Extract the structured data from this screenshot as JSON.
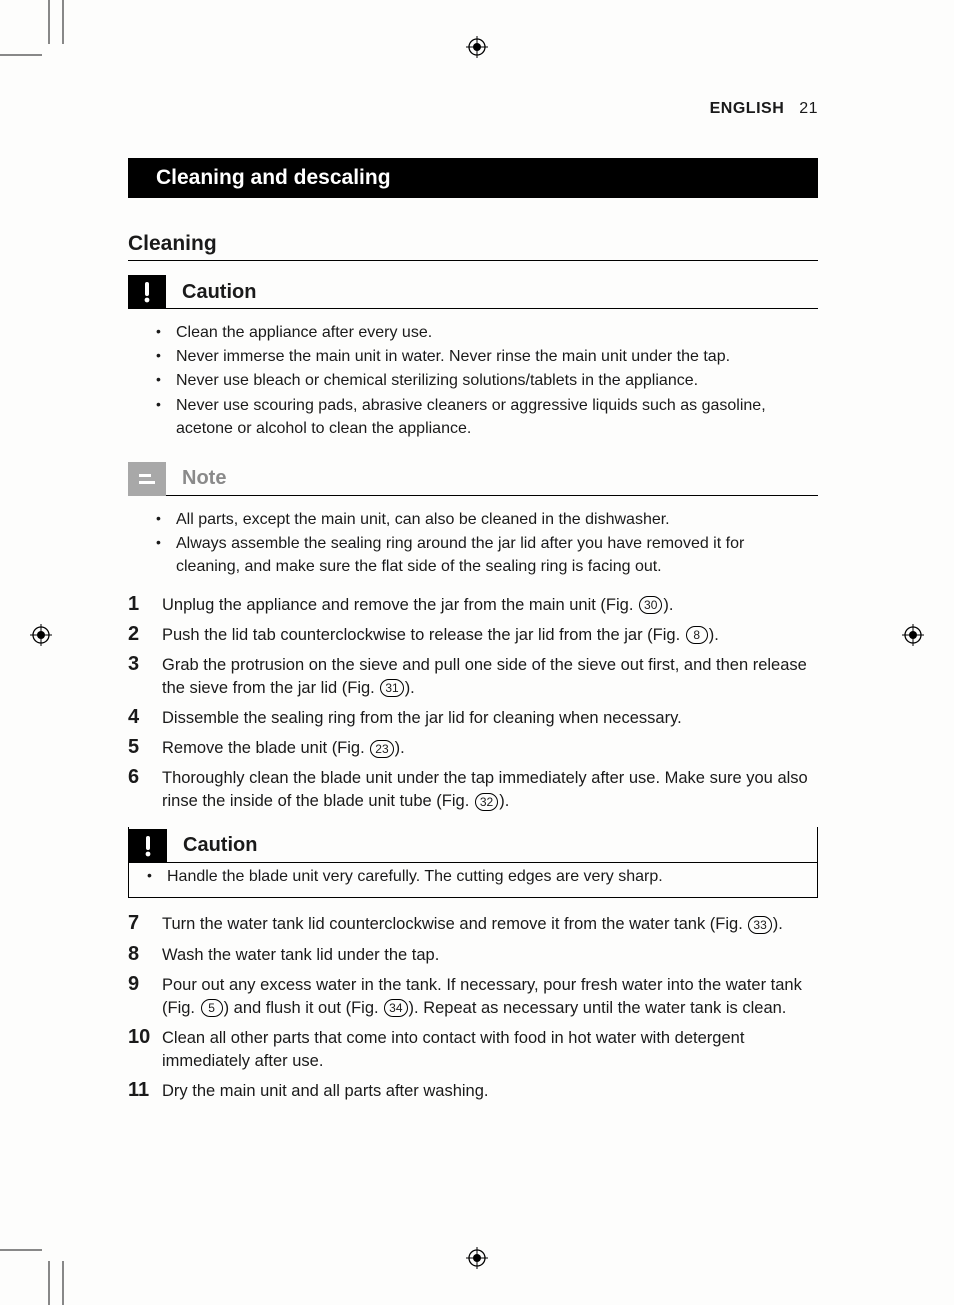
{
  "header": {
    "language": "ENGLISH",
    "page_number": "21"
  },
  "section_title": "Cleaning and descaling",
  "subheading": "Cleaning",
  "caution1": {
    "label": "Caution",
    "items": [
      "Clean the appliance after every use.",
      "Never immerse the main unit in water. Never rinse the main unit under the tap.",
      "Never use bleach or chemical sterilizing solutions/tablets in the appliance.",
      "Never use scouring pads, abrasive cleaners or aggressive liquids such as gasoline, acetone or  alcohol to clean the appliance."
    ]
  },
  "note": {
    "label": "Note",
    "items": [
      "All parts, except the main unit, can also be cleaned in the dishwasher.",
      "Always assemble the sealing ring around the jar lid after you have removed it for cleaning, and make sure the flat side of the sealing ring is facing out."
    ]
  },
  "steps_a": [
    {
      "n": "1",
      "pre": "Unplug the appliance and remove the jar from the main unit (Fig. ",
      "fig": "30",
      "post": ")."
    },
    {
      "n": "2",
      "pre": "Push the lid tab counterclockwise to release the jar lid from the jar (Fig. ",
      "fig": "8",
      "post": ")."
    },
    {
      "n": "3",
      "pre": "Grab the protrusion on the sieve and pull one side of the sieve out first, and then release the sieve from the jar lid (Fig. ",
      "fig": "31",
      "post": ")."
    },
    {
      "n": "4",
      "pre": "Dissemble the sealing ring from the jar lid for cleaning when necessary.",
      "fig": null,
      "post": ""
    },
    {
      "n": "5",
      "pre": "Remove the blade unit (Fig. ",
      "fig": "23",
      "post": ")."
    },
    {
      "n": "6",
      "pre": "Thoroughly clean the blade unit under the tap immediately after use. Make sure you also rinse the inside of the blade unit tube (Fig. ",
      "fig": "32",
      "post": ")."
    }
  ],
  "caution2": {
    "label": "Caution",
    "items": [
      "Handle the blade unit very carefully. The cutting edges are very sharp."
    ]
  },
  "steps_b": [
    {
      "n": "7",
      "pre": "Turn the water tank lid counterclockwise and remove it from the water tank (Fig. ",
      "fig": "33",
      "post": ")."
    },
    {
      "n": "8",
      "pre": "Wash the water tank lid under the tap.",
      "fig": null,
      "post": ""
    },
    {
      "n": "9",
      "pre": "Pour out any excess water in the tank. If necessary, pour fresh water into the water tank (Fig. ",
      "fig": "5",
      "mid": ") and flush it out (Fig. ",
      "fig2": "34",
      "post": "). Repeat as necessary until the water tank is clean."
    },
    {
      "n": "10",
      "pre": "Clean all other parts that come into contact with food in hot water with detergent immediately after use.",
      "fig": null,
      "post": ""
    },
    {
      "n": "11",
      "pre": "Dry the main unit and all parts after washing.",
      "fig": null,
      "post": ""
    }
  ],
  "colors": {
    "page_bg": "#fdfdfc",
    "text": "#1a1a1a",
    "bar_bg": "#000000",
    "bar_fg": "#ffffff",
    "note_gray": "#a8a8a8",
    "note_text": "#8a8a8a"
  }
}
